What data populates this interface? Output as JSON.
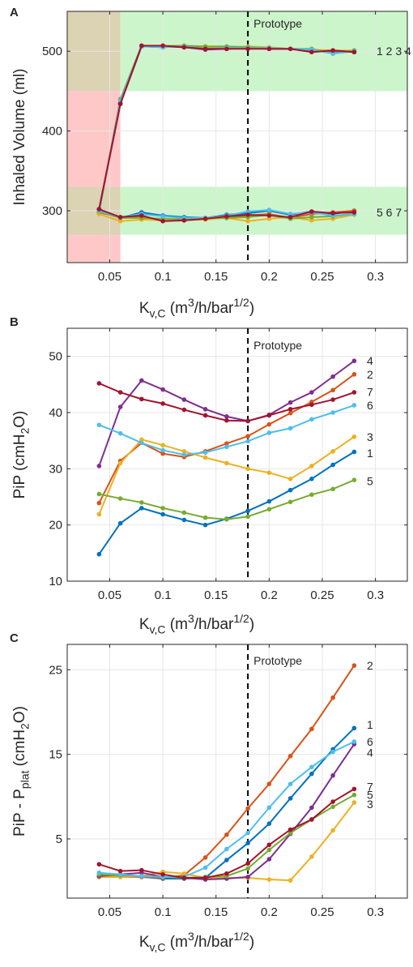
{
  "colors": {
    "1": "#0072BD",
    "2": "#D95319",
    "3": "#EDB120",
    "4": "#7E2F8E",
    "5": "#77AC30",
    "6": "#4DBEEE",
    "7": "#A2142F",
    "green_band": "#CCF5CC",
    "red_band": "#FFC8C8",
    "olive_band": "#DCD2B4",
    "grid": "#E6E6E6",
    "axis": "#262626"
  },
  "chart_data": [
    {
      "panel": "A",
      "type": "line",
      "ylabel": "Inhaled Volume (ml)",
      "xlabel": "K_{v,C} (m^3/h/bar^{1/2})",
      "xlim": [
        0.01,
        0.33
      ],
      "ylim": [
        235,
        550
      ],
      "xticks": [
        0.05,
        0.1,
        0.15,
        0.2,
        0.25,
        0.3
      ],
      "xtick_labels": [
        "0.05",
        "0.1",
        "0.15",
        "0.2",
        "0.25",
        "0.3"
      ],
      "yticks": [
        300,
        400,
        500
      ],
      "ytick_labels": [
        "300",
        "400",
        "500"
      ],
      "grid": true,
      "prototype_x": 0.18,
      "prototype_label": "Prototype",
      "bands": [
        {
          "x": [
            0.01,
            0.06
          ],
          "y": [
            450,
            550
          ],
          "color": "olive"
        },
        {
          "x": [
            0.06,
            0.33
          ],
          "y": [
            450,
            550
          ],
          "color": "green"
        },
        {
          "x": [
            0.01,
            0.06
          ],
          "y": [
            330,
            450
          ],
          "color": "red"
        },
        {
          "x": [
            0.01,
            0.06
          ],
          "y": [
            270,
            330
          ],
          "color": "olive"
        },
        {
          "x": [
            0.06,
            0.33
          ],
          "y": [
            270,
            330
          ],
          "color": "green"
        },
        {
          "x": [
            0.01,
            0.06
          ],
          "y": [
            235,
            270
          ],
          "color": "red"
        }
      ],
      "group_labels": [
        {
          "text": "1 2 3 4",
          "y": 500
        },
        {
          "text": "5 6 7",
          "y": 298
        }
      ],
      "x": [
        0.04,
        0.06,
        0.08,
        0.1,
        0.12,
        0.14,
        0.16,
        0.18,
        0.2,
        0.22,
        0.24,
        0.26,
        0.28
      ],
      "series": [
        {
          "id": "1",
          "values": [
            302,
            434,
            506,
            505,
            506,
            503,
            503,
            505,
            504,
            503,
            501,
            500,
            499
          ]
        },
        {
          "id": "2",
          "values": [
            301,
            434,
            506,
            506,
            505,
            503,
            503,
            504,
            503,
            503,
            500,
            500,
            500
          ]
        },
        {
          "id": "3",
          "values": [
            300,
            440,
            506,
            507,
            507,
            505,
            505,
            506,
            505,
            503,
            502,
            501,
            501
          ]
        },
        {
          "id": "4",
          "values": [
            302,
            435,
            506,
            506,
            505,
            502,
            503,
            504,
            503,
            503,
            499,
            501,
            499
          ]
        },
        {
          "id": "5",
          "values": [
            298,
            440,
            507,
            506,
            507,
            506,
            506,
            505,
            504,
            503,
            503,
            497,
            501
          ]
        },
        {
          "id": "6",
          "values": [
            300,
            438,
            506,
            505,
            506,
            503,
            504,
            504,
            504,
            503,
            502,
            497,
            500
          ]
        },
        {
          "id": "7",
          "values": [
            302,
            434,
            507,
            507,
            505,
            503,
            503,
            503,
            503,
            503,
            499,
            501,
            499
          ]
        },
        {
          "id": "1",
          "values": [
            300,
            291,
            298,
            294,
            292,
            291,
            295,
            297,
            300,
            295,
            299,
            296,
            300
          ]
        },
        {
          "id": "2",
          "values": [
            298,
            292,
            292,
            289,
            290,
            290,
            292,
            294,
            296,
            291,
            296,
            298,
            300
          ]
        },
        {
          "id": "3",
          "values": [
            296,
            287,
            289,
            288,
            288,
            289,
            291,
            287,
            290,
            292,
            288,
            290,
            295
          ]
        },
        {
          "id": "5",
          "values": [
            299,
            291,
            291,
            290,
            289,
            291,
            291,
            292,
            295,
            290,
            292,
            293,
            296
          ]
        },
        {
          "id": "6",
          "values": [
            300,
            292,
            296,
            293,
            291,
            291,
            294,
            299,
            301,
            296,
            298,
            294,
            296
          ]
        },
        {
          "id": "7",
          "values": [
            302,
            292,
            294,
            287,
            288,
            290,
            293,
            295,
            294,
            292,
            299,
            297,
            298
          ]
        }
      ]
    },
    {
      "panel": "B",
      "type": "line",
      "ylabel": "PiP (cmH_2O)",
      "xlabel": "K_{v,C} (m^3/h/bar^{1/2})",
      "xlim": [
        0.01,
        0.33
      ],
      "ylim": [
        10,
        55
      ],
      "xticks": [
        0.05,
        0.1,
        0.15,
        0.2,
        0.25,
        0.3
      ],
      "xtick_labels": [
        "0.05",
        "0.1",
        "0.15",
        "0.2",
        "0.25",
        "0.3"
      ],
      "yticks": [
        10,
        20,
        30,
        40,
        50
      ],
      "ytick_labels": [
        "10",
        "20",
        "30",
        "40",
        "50"
      ],
      "grid": true,
      "prototype_x": 0.18,
      "prototype_label": "Prototype",
      "x": [
        0.04,
        0.06,
        0.08,
        0.1,
        0.12,
        0.14,
        0.16,
        0.18,
        0.2,
        0.22,
        0.24,
        0.26,
        0.28
      ],
      "series": [
        {
          "id": "1",
          "label": "1",
          "label_y": 32.8,
          "values": [
            14.8,
            20.3,
            23.0,
            21.9,
            20.9,
            20.0,
            21.1,
            22.5,
            24.2,
            26.2,
            28.2,
            30.7,
            33.0
          ]
        },
        {
          "id": "2",
          "label": "2",
          "label_y": 46.8,
          "values": [
            23.9,
            31.4,
            34.6,
            32.7,
            32.1,
            33.1,
            34.5,
            35.8,
            37.9,
            39.9,
            41.9,
            44.0,
            46.8
          ]
        },
        {
          "id": "3",
          "label": "3",
          "label_y": 35.7,
          "values": [
            21.9,
            31.0,
            35.2,
            34.2,
            33.1,
            32.0,
            31.0,
            30.0,
            29.3,
            28.2,
            30.5,
            33.1,
            35.7
          ]
        },
        {
          "id": "4",
          "label": "4",
          "label_y": 49.2,
          "values": [
            30.5,
            41.0,
            45.7,
            44.1,
            42.3,
            40.6,
            39.3,
            38.5,
            39.6,
            41.8,
            43.6,
            46.4,
            49.2
          ]
        },
        {
          "id": "5",
          "label": "5",
          "label_y": 27.8,
          "values": [
            25.5,
            24.7,
            24.0,
            23.0,
            22.2,
            21.3,
            21.0,
            21.5,
            22.8,
            24.1,
            25.4,
            26.4,
            28.0
          ]
        },
        {
          "id": "6",
          "label": "6",
          "label_y": 41.3,
          "values": [
            37.8,
            36.3,
            34.6,
            33.3,
            32.5,
            32.9,
            33.9,
            34.9,
            36.4,
            37.2,
            38.8,
            40.0,
            41.3
          ]
        },
        {
          "id": "7",
          "label": "7",
          "label_y": 43.7,
          "values": [
            45.2,
            43.6,
            42.4,
            41.6,
            40.5,
            39.5,
            38.6,
            38.5,
            39.5,
            40.6,
            41.4,
            42.3,
            43.6
          ]
        }
      ]
    },
    {
      "panel": "C",
      "type": "line",
      "ylabel": "PiP - P_{plat} (cmH_2O)",
      "xlabel": "K_{v,C} (m^3/h/bar^{1/2})",
      "xlim": [
        0.01,
        0.33
      ],
      "ylim": [
        -2,
        28
      ],
      "xticks": [
        0.05,
        0.1,
        0.15,
        0.2,
        0.25,
        0.3
      ],
      "xtick_labels": [
        "0.05",
        "0.1",
        "0.15",
        "0.2",
        "0.25",
        "0.3"
      ],
      "yticks": [
        5,
        15,
        25
      ],
      "ytick_labels": [
        "5",
        "15",
        "25"
      ],
      "grid": true,
      "prototype_x": 0.18,
      "prototype_label": "Prototype",
      "x": [
        0.04,
        0.06,
        0.08,
        0.1,
        0.12,
        0.14,
        0.16,
        0.18,
        0.2,
        0.22,
        0.24,
        0.26,
        0.28
      ],
      "series": [
        {
          "id": "1",
          "label": "1",
          "label_y": 18.5,
          "values": [
            0.6,
            0.6,
            0.5,
            0.3,
            0.3,
            0.4,
            2.5,
            4.5,
            6.8,
            9.8,
            12.7,
            15.6,
            18.1
          ]
        },
        {
          "id": "2",
          "label": "2",
          "label_y": 25.5,
          "values": [
            0.5,
            0.5,
            0.5,
            0.4,
            0.7,
            2.8,
            5.5,
            8.6,
            11.5,
            14.8,
            18.0,
            21.7,
            25.5
          ]
        },
        {
          "id": "3",
          "label": "3",
          "label_y": 9.1,
          "values": [
            0.5,
            0.5,
            0.6,
            1.1,
            0.9,
            0.4,
            0.4,
            0.4,
            0.2,
            0.1,
            2.9,
            6.0,
            9.3
          ]
        },
        {
          "id": "4",
          "label": "4",
          "label_y": 15.2,
          "values": [
            0.6,
            0.8,
            1.0,
            0.5,
            0.4,
            0.2,
            0.3,
            0.5,
            2.6,
            5.6,
            8.7,
            12.5,
            16.2
          ]
        },
        {
          "id": "5",
          "label": "5",
          "label_y": 10.2,
          "values": [
            0.8,
            0.7,
            0.6,
            0.5,
            0.4,
            0.5,
            0.6,
            1.5,
            3.7,
            5.7,
            7.3,
            8.8,
            10.2
          ]
        },
        {
          "id": "6",
          "label": "6",
          "label_y": 16.5,
          "values": [
            1.0,
            0.8,
            0.6,
            0.5,
            0.5,
            1.6,
            3.8,
            5.7,
            8.7,
            11.5,
            13.5,
            15.3,
            16.5
          ]
        },
        {
          "id": "7",
          "label": "7",
          "label_y": 11.2,
          "values": [
            2.0,
            1.2,
            1.3,
            0.8,
            0.4,
            0.4,
            0.9,
            2.1,
            4.3,
            6.1,
            7.3,
            9.4,
            10.9
          ]
        }
      ]
    }
  ]
}
